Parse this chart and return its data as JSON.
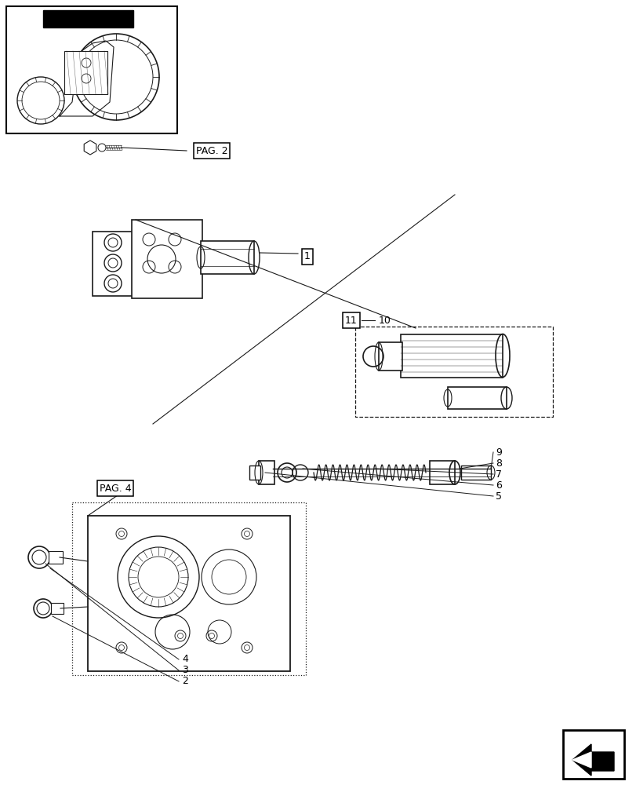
{
  "bg_color": "#ffffff",
  "line_color": "#1a1a1a",
  "labels": {
    "pag2": "PAG. 2",
    "pag4": "PAG. 4",
    "num1": "1",
    "num2": "2",
    "num3": "3",
    "num4": "4",
    "num5": "5",
    "num6": "6",
    "num7": "7",
    "num8": "8",
    "num9": "9",
    "num10": "10",
    "num11": "11"
  },
  "figsize": [
    8.12,
    10.0
  ],
  "dpi": 100
}
